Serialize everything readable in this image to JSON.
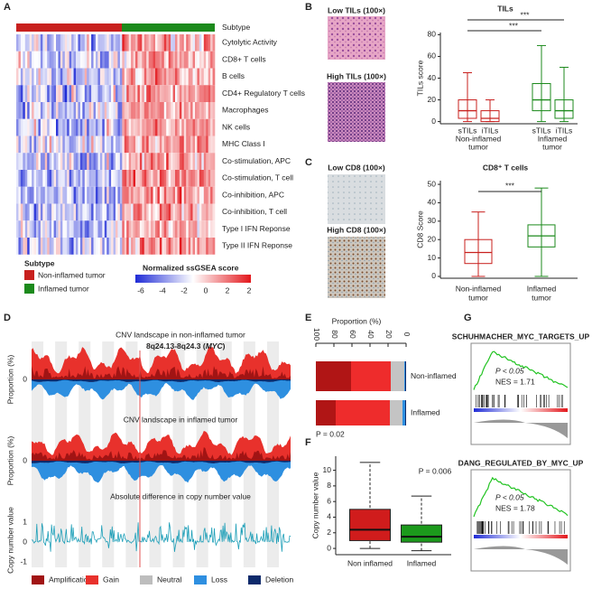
{
  "A": {
    "label": "A",
    "subtype_header": "Subtype",
    "rows": [
      "Cytolytic Activity",
      "CD8+ T cells",
      "B cells",
      "CD4+ Regulatory T cells",
      "Macrophages",
      "NK cells",
      "MHC Class I",
      "Co-stimulation, APC",
      "Co-stimulation, T cell",
      "Co-inhibition, APC",
      "Co-inhibition, T cell",
      "Type I IFN Reponse",
      "Type II IFN Reponse"
    ],
    "legend_title": "Subtype",
    "legend": [
      {
        "name": "Non-inflamed tumor",
        "color": "#c8201e"
      },
      {
        "name": "Inflamed tumor",
        "color": "#1c8a1c"
      }
    ],
    "colorbar_title": "Normalized ssGSEA score",
    "colorbar_ticks": [
      "-6",
      "-4",
      "-2",
      "0",
      "2",
      "2"
    ]
  },
  "B": {
    "label": "B",
    "image_labels": [
      "Low TILs (100×)",
      "High TILs (100×)"
    ],
    "chart": {
      "title": "TILs",
      "ylabel": "TILs score",
      "ylim": [
        -2,
        82
      ],
      "yticks": [
        0,
        20,
        40,
        60,
        80
      ],
      "categories": [
        "sTILs",
        "iTILs",
        "sTILs",
        "iTILs"
      ],
      "groups": [
        [
          "Non-inflamed",
          "tumor"
        ],
        [
          "Inflamed",
          "tumor"
        ]
      ],
      "boxes": [
        {
          "low": 0,
          "q1": 3,
          "median": 10,
          "q3": 20,
          "high": 45,
          "color": "#c8201e"
        },
        {
          "low": 0,
          "q1": 0,
          "median": 3,
          "q3": 10,
          "high": 20,
          "color": "#c8201e"
        },
        {
          "low": 0,
          "q1": 10,
          "median": 20,
          "q3": 35,
          "high": 70,
          "color": "#1c8a1c"
        },
        {
          "low": 0,
          "q1": 3,
          "median": 10,
          "q3": 20,
          "high": 50,
          "color": "#1c8a1c"
        }
      ],
      "significance": [
        "***",
        "***"
      ]
    }
  },
  "C": {
    "label": "C",
    "image_labels": [
      "Low CD8 (100×)",
      "High CD8 (100×)"
    ],
    "chart": {
      "title": "CD8⁺ T cells",
      "ylabel": "CD8 Score",
      "ylim": [
        -1,
        52
      ],
      "yticks": [
        0,
        10,
        20,
        30,
        40,
        50
      ],
      "groups": [
        [
          "Non-inflamed",
          "tumor"
        ],
        [
          "Inflamed",
          "tumor"
        ]
      ],
      "boxes": [
        {
          "low": 0,
          "q1": 7,
          "median": 13,
          "q3": 20,
          "high": 35,
          "color": "#c8201e"
        },
        {
          "low": 0,
          "q1": 16,
          "median": 22,
          "q3": 28,
          "high": 48,
          "color": "#1c8a1c"
        }
      ],
      "significance": [
        "***"
      ]
    }
  },
  "D": {
    "label": "D",
    "charts": [
      {
        "title": "CNV landscape in non-inflamed tumor",
        "ylabel": "Proportion (%)",
        "yticks": [
          "0"
        ]
      },
      {
        "title": "CNV landscape in inflamed tumor",
        "ylabel": "Proportion (%)",
        "yticks": [
          "0"
        ]
      },
      {
        "title": "Absolute difference in copy number value",
        "ylabel": "Copy number value",
        "yticks": [
          "1",
          "0",
          "-1"
        ]
      }
    ],
    "annotation": "8q24.13-8q24.3 (",
    "annotation_gene": "MYC",
    "annotation_end": ")",
    "legend": [
      {
        "name": "Amplification",
        "color": "#a11414"
      },
      {
        "name": "Gain",
        "color": "#e8312c"
      },
      {
        "name": "Neutral",
        "color": "#bdbdbd"
      },
      {
        "name": "Loss",
        "color": "#2e8fe0"
      },
      {
        "name": "Deletion",
        "color": "#0d2a6b"
      }
    ]
  },
  "E": {
    "label": "E",
    "axis_title": "Proportion (%)",
    "xlim": [
      100,
      0
    ],
    "xticks": [
      100,
      80,
      60,
      40,
      20,
      0
    ],
    "categories": [
      "Non-inflamed",
      "Inflamed"
    ],
    "series": [
      {
        "color": "#b01515",
        "values": [
          39,
          22
        ]
      },
      {
        "color": "#ee2c2c",
        "values": [
          44,
          60
        ]
      },
      {
        "color": "#c4c4c4",
        "values": [
          15,
          14
        ]
      },
      {
        "color": "#2e8fe0",
        "values": [
          1,
          3
        ]
      },
      {
        "color": "#0d2a6b",
        "values": [
          1,
          1
        ]
      }
    ],
    "p_value": "P = 0.02"
  },
  "F": {
    "label": "F",
    "ylabel": "Copy number value",
    "ylim": [
      -0.8,
      11.8
    ],
    "yticks": [
      0,
      2,
      4,
      6,
      8,
      10
    ],
    "categories": [
      "Non inflamed",
      "Inflamed"
    ],
    "boxes": [
      {
        "low": 0,
        "q1": 1,
        "median": 2.4,
        "q3": 5,
        "high": 11,
        "color": "#d01c1c"
      },
      {
        "low": -0.3,
        "q1": 0.8,
        "median": 1.5,
        "q3": 3,
        "high": 6.7,
        "color": "#1c9a1c"
      }
    ],
    "p_value": "P = 0.006"
  },
  "G": {
    "label": "G",
    "plots": [
      {
        "title": "SCHUHMACHER_MYC_TARGETS_UP",
        "p": "P < 0.05",
        "nes": "NES = 1.71"
      },
      {
        "title": "DANG_REGULATED_BY_MYC_UP",
        "p": "P < 0.05",
        "nes": "NES = 1.78"
      }
    ]
  }
}
